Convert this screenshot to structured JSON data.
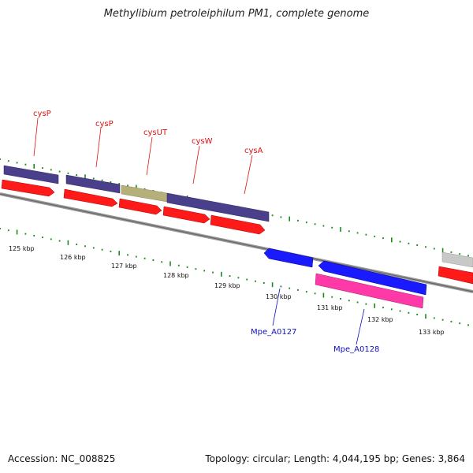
{
  "title": "Methylibium petroleiphilum PM1, complete genome",
  "footer": {
    "accession": "Accession: NC_008825",
    "summary": "Topology: circular; Length: 4,044,195 bp; Genes: 3,864"
  },
  "colors": {
    "forward_cds": "#ff1a1a",
    "reverse_cds": "#1a1aff",
    "forward_gene_upper": "#4a3f8a",
    "operon_gene": "#b5b07a",
    "reverse_pink": "#ff3aa8",
    "unknown_gene": "#c8c8c8",
    "ticks": "#1a8a1a",
    "forward_label": "#e01010",
    "reverse_label": "#1010c0"
  },
  "axis": {
    "unit": "kbp",
    "labels": [
      "125 kbp",
      "126 kbp",
      "127 kbp",
      "128 kbp",
      "129 kbp",
      "130 kbp",
      "131 kbp",
      "132 kbp",
      "133 kbp"
    ]
  },
  "gene_labels": {
    "forward": [
      "cysP",
      "cysP",
      "cysUT",
      "cysW",
      "cysA"
    ],
    "reverse": [
      "Mpe_A0127",
      "Mpe_A0128"
    ]
  }
}
